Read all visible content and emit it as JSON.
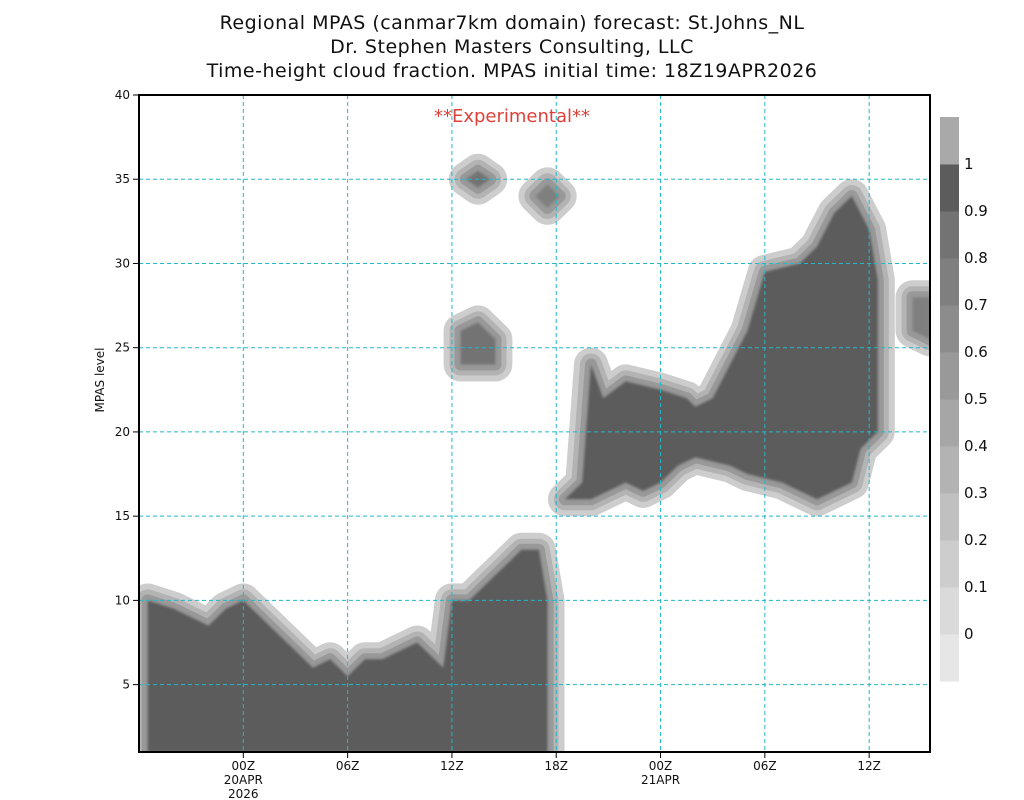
{
  "header": {
    "line1": "Regional MPAS (canmar7km domain) forecast: St.Johns_NL",
    "line2": "Dr. Stephen Masters Consulting, LLC",
    "line3": "Time-height cloud fraction.   MPAS initial time: 18Z19APR2026"
  },
  "watermark": "**Experimental**",
  "chart_data": {
    "type": "heatmap",
    "title": "Time-height cloud fraction.",
    "ylabel": "MPAS level",
    "ylim": [
      1,
      40
    ],
    "yticks": [
      5,
      10,
      15,
      20,
      25,
      30,
      35,
      40
    ],
    "x_hours": [
      -6,
      39.5
    ],
    "xticks": [
      {
        "hour": 0,
        "label": "00Z",
        "date": "20APR",
        "year": "2026"
      },
      {
        "hour": 6,
        "label": "06Z"
      },
      {
        "hour": 12,
        "label": "12Z"
      },
      {
        "hour": 18,
        "label": "18Z"
      },
      {
        "hour": 24,
        "label": "00Z",
        "date": "21APR"
      },
      {
        "hour": 30,
        "label": "06Z"
      },
      {
        "hour": 36,
        "label": "12Z"
      }
    ],
    "colorbar": {
      "labels": [
        "0",
        "0.1",
        "0.2",
        "0.3",
        "0.4",
        "0.5",
        "0.6",
        "0.7",
        "0.8",
        "0.9",
        "1"
      ],
      "colors": [
        "#e6e6e6",
        "#dadada",
        "#cdcdcd",
        "#c0c0c0",
        "#b3b3b3",
        "#a6a6a6",
        "#999999",
        "#8c8c8c",
        "#7f7f7f",
        "#737373",
        "#5c5c5c",
        "#a9a9a9"
      ]
    },
    "regions": [
      {
        "name": "low-cloud-deck",
        "fraction": 1.0,
        "polygon": [
          [
            -5.5,
            1
          ],
          [
            -5.5,
            10
          ],
          [
            -4,
            9.5
          ],
          [
            -2,
            8.5
          ],
          [
            -1,
            9.5
          ],
          [
            0,
            10
          ],
          [
            2,
            8
          ],
          [
            3,
            7
          ],
          [
            4,
            6
          ],
          [
            5,
            6.5
          ],
          [
            6,
            5.5
          ],
          [
            7,
            6.5
          ],
          [
            8,
            6.5
          ],
          [
            9,
            7
          ],
          [
            10,
            7.5
          ],
          [
            11,
            6.5
          ],
          [
            11.5,
            6
          ],
          [
            12,
            10
          ],
          [
            13,
            10
          ],
          [
            14,
            11
          ],
          [
            15,
            12
          ],
          [
            16,
            13
          ],
          [
            17,
            13
          ],
          [
            17.5,
            10
          ],
          [
            17.5,
            1
          ]
        ]
      },
      {
        "name": "mid-cloud-band",
        "fraction": 1.0,
        "polygon": [
          [
            18.5,
            16
          ],
          [
            19.5,
            17
          ],
          [
            20,
            24
          ],
          [
            20.7,
            22
          ],
          [
            22,
            23
          ],
          [
            24,
            22.5
          ],
          [
            25.5,
            22
          ],
          [
            26,
            21.5
          ],
          [
            27,
            22
          ],
          [
            28,
            24
          ],
          [
            29,
            26
          ],
          [
            30,
            29.5
          ],
          [
            32,
            30
          ],
          [
            33,
            31
          ],
          [
            34,
            33
          ],
          [
            35,
            34
          ],
          [
            36,
            32
          ],
          [
            36.5,
            29
          ],
          [
            36.5,
            24
          ],
          [
            36.5,
            20
          ],
          [
            35.5,
            19
          ],
          [
            35,
            17
          ],
          [
            33,
            16
          ],
          [
            32,
            16.5
          ],
          [
            31,
            17
          ],
          [
            29,
            17.5
          ],
          [
            28,
            18
          ],
          [
            26,
            18.5
          ],
          [
            25,
            18
          ],
          [
            24,
            17
          ],
          [
            23,
            16.5
          ],
          [
            22,
            17
          ],
          [
            21,
            16.5
          ],
          [
            20,
            16
          ]
        ]
      },
      {
        "name": "upper-patch",
        "fraction": 0.9,
        "polygon": [
          [
            12.5,
            24
          ],
          [
            12.5,
            26
          ],
          [
            13.5,
            26.5
          ],
          [
            14.5,
            25.5
          ],
          [
            14.5,
            24
          ]
        ]
      },
      {
        "name": "upper-spike-12z",
        "fraction": 0.85,
        "polygon": [
          [
            12.8,
            35
          ],
          [
            13.5,
            35.5
          ],
          [
            14.2,
            35
          ],
          [
            13.5,
            34.5
          ]
        ]
      },
      {
        "name": "upper-spike-18z",
        "fraction": 0.8,
        "polygon": [
          [
            16.8,
            34
          ],
          [
            17.5,
            34.7
          ],
          [
            18.2,
            34
          ],
          [
            17.5,
            33.3
          ]
        ]
      },
      {
        "name": "right-edge-patch",
        "fraction": 0.8,
        "polygon": [
          [
            38.5,
            28
          ],
          [
            39.5,
            28
          ],
          [
            39.5,
            25.5
          ],
          [
            38.5,
            26
          ]
        ]
      }
    ]
  }
}
